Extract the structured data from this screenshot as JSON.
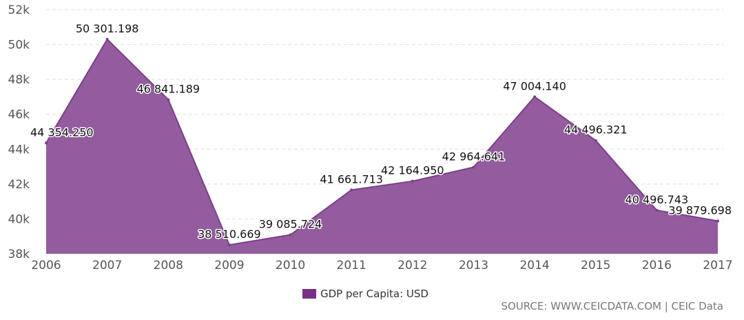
{
  "chart_data": {
    "type": "area",
    "categories": [
      "2006",
      "2007",
      "2008",
      "2009",
      "2010",
      "2011",
      "2012",
      "2013",
      "2014",
      "2015",
      "2016",
      "2017"
    ],
    "series": [
      {
        "name": "GDP per Capita: USD",
        "values": [
          44354.25,
          50301.198,
          46841.189,
          38510.669,
          39085.724,
          41661.713,
          42164.95,
          42964.641,
          47004.14,
          44496.321,
          40496.743,
          39879.698
        ],
        "labels": [
          "44 354.250",
          "50 301.198",
          "46 841.189",
          "38 510.669",
          "39 085.724",
          "41 661.713",
          "42 164.950",
          "42 964.641",
          "47 004.140",
          "44 496.321",
          "40 496.743",
          "39 879.698"
        ],
        "color": "#935C9E"
      }
    ],
    "ylim": [
      38000,
      52000
    ],
    "y_ticks": [
      38000,
      40000,
      42000,
      44000,
      46000,
      48000,
      50000,
      52000
    ],
    "y_tick_labels": [
      "38k",
      "40k",
      "42k",
      "44k",
      "46k",
      "48k",
      "50k",
      "52k"
    ],
    "grid": true,
    "legend_position": "bottom-center",
    "source": "SOURCE: WWW.CEICDATA.COM | CEIC Data"
  },
  "colors": {
    "area_fill": "#935C9E",
    "area_stroke": "#7B3F87",
    "legend_swatch": "#7B2F87",
    "grid": "#dddddd"
  }
}
